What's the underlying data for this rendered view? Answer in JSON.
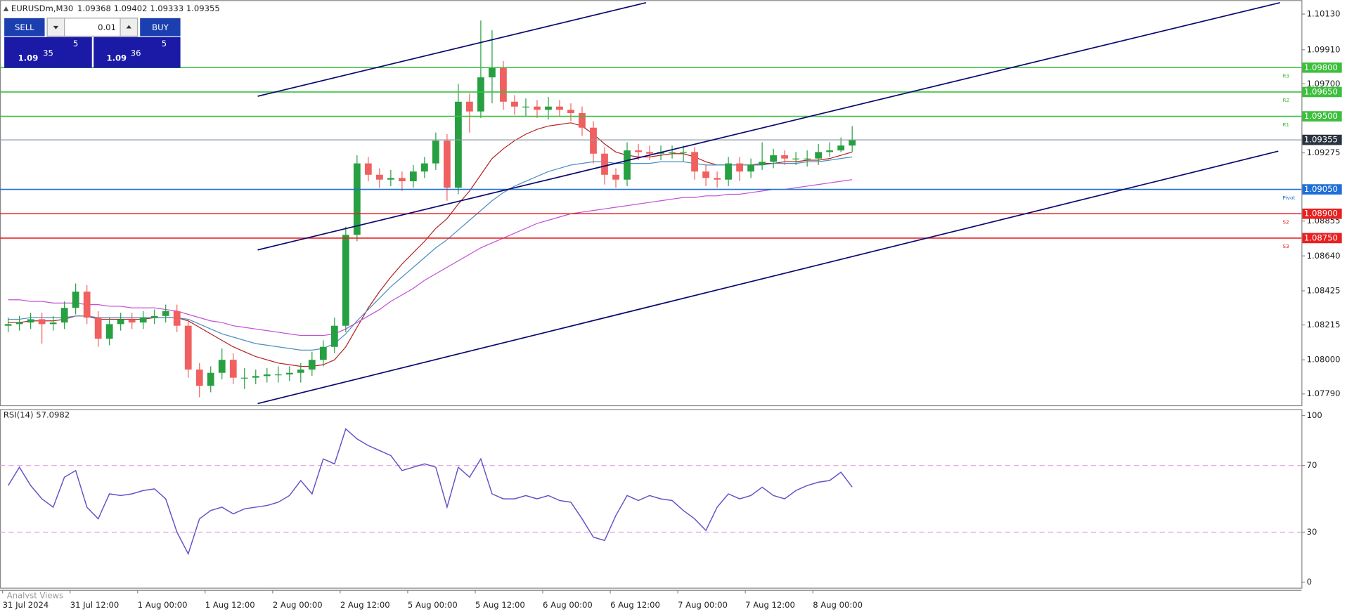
{
  "header": {
    "symbol": "EURUSDm,M30",
    "ohlc": "1.09368 1.09402 1.09333 1.09355"
  },
  "trade_panel": {
    "sell": "SELL",
    "buy": "BUY",
    "lot": "0.01",
    "bid": {
      "big": "1.09",
      "main": "35",
      "small": "5"
    },
    "ask": {
      "big": "1.09",
      "main": "36",
      "small": "5"
    }
  },
  "footer": "Analyst Views",
  "chart_data": [
    {
      "type": "candlestick",
      "up_color": "#26a041",
      "down_color": "#f06060",
      "categories": [
        "31 Jul 2024",
        null,
        null,
        null,
        null,
        null,
        "31 Jul 12:00",
        null,
        null,
        null,
        null,
        null,
        "1 Aug 00:00",
        null,
        null,
        null,
        null,
        null,
        "1 Aug 12:00",
        null,
        null,
        null,
        null,
        null,
        "2 Aug 00:00",
        null,
        null,
        null,
        null,
        null,
        "2 Aug 12:00",
        null,
        null,
        null,
        null,
        null,
        "5 Aug 00:00",
        null,
        null,
        null,
        null,
        null,
        "5 Aug 12:00",
        null,
        null,
        null,
        null,
        null,
        "6 Aug 00:00",
        null,
        null,
        null,
        null,
        null,
        "6 Aug 12:00",
        null,
        null,
        null,
        null,
        null,
        "7 Aug 00:00",
        null,
        null,
        null,
        null,
        null,
        "7 Aug 12:00",
        null,
        null,
        null,
        null,
        null,
        "8 Aug 00:00",
        null,
        null,
        null
      ],
      "open": [
        1.0821,
        1.0822,
        1.0823,
        1.0825,
        1.0822,
        1.0823,
        1.0832,
        1.0842,
        1.0826,
        1.0813,
        1.0822,
        1.0825,
        1.0823,
        1.0826,
        1.0827,
        1.083,
        1.0821,
        1.0794,
        1.0784,
        1.0792,
        1.08,
        1.0789,
        1.0789,
        1.079,
        1.0791,
        1.0791,
        1.0792,
        1.0794,
        1.08,
        1.0808,
        1.0821,
        1.0877,
        1.0921,
        1.0914,
        1.0911,
        1.0912,
        1.091,
        1.0916,
        1.0921,
        1.0935,
        1.0906,
        1.0959,
        1.0953,
        1.0974,
        1.098,
        1.0959,
        1.0956,
        1.0956,
        1.0954,
        1.0956,
        1.0954,
        1.0952,
        1.0943,
        1.0927,
        1.0914,
        1.0911,
        1.0929,
        1.0928,
        1.0927,
        1.0928,
        1.0928,
        1.0928,
        1.0916,
        1.0912,
        1.0911,
        1.0921,
        1.0916,
        1.092,
        1.0922,
        1.0926,
        1.0924,
        1.0924,
        1.0924,
        1.0928,
        1.0929,
        1.0932
      ],
      "high": [
        1.0826,
        1.0827,
        1.0829,
        1.0829,
        1.0827,
        1.0836,
        1.0847,
        1.0846,
        1.083,
        1.0826,
        1.0829,
        1.0829,
        1.083,
        1.0831,
        1.0834,
        1.0834,
        1.0825,
        1.0798,
        1.0796,
        1.0807,
        1.0804,
        1.0795,
        1.0794,
        1.0795,
        1.0796,
        1.0796,
        1.0798,
        1.0805,
        1.0812,
        1.0826,
        1.0882,
        1.0926,
        1.0925,
        1.0918,
        1.0917,
        1.0916,
        1.092,
        1.0925,
        1.094,
        1.0939,
        1.097,
        1.0964,
        1.1009,
        1.1003,
        1.0984,
        1.0963,
        1.0961,
        1.096,
        1.0962,
        1.096,
        1.0958,
        1.0956,
        1.0947,
        1.0931,
        1.0918,
        1.0934,
        1.0933,
        1.0932,
        1.0932,
        1.0932,
        1.0932,
        1.0931,
        1.092,
        1.0916,
        1.0925,
        1.0925,
        1.0924,
        1.0934,
        1.093,
        1.0929,
        1.0928,
        1.0929,
        1.0933,
        1.0934,
        1.0937,
        1.0944
      ],
      "low": [
        1.0817,
        1.0818,
        1.0819,
        1.081,
        1.0818,
        1.0819,
        1.0828,
        1.0822,
        1.0808,
        1.0809,
        1.0818,
        1.0819,
        1.0819,
        1.0822,
        1.0823,
        1.0817,
        1.0789,
        1.0777,
        1.078,
        1.0788,
        1.0785,
        1.0782,
        1.0785,
        1.0786,
        1.0786,
        1.0787,
        1.0786,
        1.079,
        1.0796,
        1.0804,
        1.0817,
        1.0873,
        1.091,
        1.0906,
        1.0907,
        1.0904,
        1.0906,
        1.0912,
        1.0917,
        1.0898,
        1.0902,
        1.094,
        1.0949,
        1.0958,
        1.0954,
        1.0951,
        1.095,
        1.0949,
        1.0948,
        1.095,
        1.0947,
        1.0938,
        1.0921,
        1.0908,
        1.0906,
        1.0907,
        1.0923,
        1.0923,
        1.0923,
        1.0924,
        1.0922,
        1.0911,
        1.0907,
        1.0906,
        1.0907,
        1.091,
        1.0912,
        1.0917,
        1.0918,
        1.092,
        1.092,
        1.0919,
        1.092,
        1.0925,
        1.0928,
        1.0928
      ],
      "close": [
        1.0822,
        1.0823,
        1.0825,
        1.0822,
        1.0823,
        1.0832,
        1.0842,
        1.0826,
        1.0813,
        1.0822,
        1.0825,
        1.0823,
        1.0826,
        1.0827,
        1.083,
        1.0821,
        1.0794,
        1.0784,
        1.0792,
        1.08,
        1.0789,
        1.0789,
        1.079,
        1.0791,
        1.0791,
        1.0792,
        1.0794,
        1.08,
        1.0808,
        1.0821,
        1.0877,
        1.0921,
        1.0914,
        1.0911,
        1.0912,
        1.091,
        1.0916,
        1.0921,
        1.0935,
        1.0906,
        1.0959,
        1.0953,
        1.0974,
        1.098,
        1.0959,
        1.0956,
        1.0956,
        1.0954,
        1.0956,
        1.0954,
        1.0952,
        1.0943,
        1.0927,
        1.0914,
        1.0911,
        1.0929,
        1.0928,
        1.0927,
        1.0928,
        1.0928,
        1.0928,
        1.0916,
        1.0912,
        1.0911,
        1.0921,
        1.0916,
        1.092,
        1.0922,
        1.0926,
        1.0924,
        1.0924,
        1.0924,
        1.0928,
        1.0929,
        1.0932,
        1.09355
      ],
      "lines": [
        {
          "color": "#b22222",
          "values": [
            1.0823,
            1.0823,
            1.0824,
            1.0824,
            1.0824,
            1.0825,
            1.0827,
            1.0827,
            1.0825,
            1.0825,
            1.0825,
            1.0825,
            1.0825,
            1.0826,
            1.0826,
            1.0826,
            1.0824,
            1.082,
            1.0816,
            1.0812,
            1.0808,
            1.0805,
            1.0802,
            1.08,
            1.0798,
            1.0797,
            1.0796,
            1.0796,
            1.0797,
            1.08,
            1.0808,
            1.082,
            1.0832,
            1.0842,
            1.0851,
            1.0859,
            1.0866,
            1.0873,
            1.0881,
            1.0887,
            1.0896,
            1.0904,
            1.0914,
            1.0924,
            1.093,
            1.0935,
            1.0939,
            1.0942,
            1.0944,
            1.0945,
            1.0946,
            1.0944,
            1.0939,
            1.0933,
            1.0928,
            1.0926,
            1.0925,
            1.0925,
            1.0926,
            1.0927,
            1.0927,
            1.0925,
            1.0922,
            1.092,
            1.092,
            1.092,
            1.092,
            1.0921,
            1.0921,
            1.0922,
            1.0922,
            1.0923,
            1.0923,
            1.0924,
            1.0926,
            1.0928
          ]
        },
        {
          "color": "#4a8fc0",
          "values": [
            1.0825,
            1.0825,
            1.0826,
            1.0826,
            1.0826,
            1.0826,
            1.0827,
            1.0827,
            1.0826,
            1.0826,
            1.0826,
            1.0826,
            1.0826,
            1.0826,
            1.0826,
            1.0826,
            1.0825,
            1.0822,
            1.0819,
            1.0816,
            1.0814,
            1.0812,
            1.081,
            1.0809,
            1.0808,
            1.0807,
            1.0806,
            1.0806,
            1.0807,
            1.081,
            1.0816,
            1.0824,
            1.0831,
            1.0838,
            1.0845,
            1.0851,
            1.0857,
            1.0863,
            1.0869,
            1.0874,
            1.088,
            1.0886,
            1.0892,
            1.0898,
            1.0903,
            1.0907,
            1.091,
            1.0913,
            1.0916,
            1.0918,
            1.092,
            1.0921,
            1.0922,
            1.0922,
            1.0921,
            1.0921,
            1.0921,
            1.0921,
            1.0922,
            1.0922,
            1.0922,
            1.0921,
            1.092,
            1.092,
            1.092,
            1.092,
            1.092,
            1.092,
            1.0921,
            1.0921,
            1.0921,
            1.0922,
            1.0922,
            1.0923,
            1.0924,
            1.0925
          ]
        },
        {
          "color": "#c24fd6",
          "values": [
            1.0837,
            1.0837,
            1.0836,
            1.0836,
            1.0835,
            1.0835,
            1.0835,
            1.0834,
            1.0834,
            1.0833,
            1.0833,
            1.0832,
            1.0832,
            1.0832,
            1.0831,
            1.083,
            1.0828,
            1.0826,
            1.0824,
            1.0823,
            1.0821,
            1.082,
            1.0819,
            1.0818,
            1.0817,
            1.0816,
            1.0815,
            1.0815,
            1.0815,
            1.0816,
            1.0819,
            1.0823,
            1.0827,
            1.0831,
            1.0836,
            1.084,
            1.0844,
            1.0849,
            1.0853,
            1.0857,
            1.0861,
            1.0865,
            1.0869,
            1.0872,
            1.0875,
            1.0878,
            1.0881,
            1.0884,
            1.0886,
            1.0888,
            1.089,
            1.0891,
            1.0892,
            1.0893,
            1.0894,
            1.0895,
            1.0896,
            1.0897,
            1.0898,
            1.0899,
            1.09,
            1.09,
            1.0901,
            1.0901,
            1.0902,
            1.0902,
            1.0903,
            1.0904,
            1.0905,
            1.0905,
            1.0906,
            1.0907,
            1.0908,
            1.0909,
            1.091,
            1.0911
          ]
        }
      ],
      "levels": [
        {
          "name": "R3",
          "value": 1.098,
          "label": "1.09800",
          "color": "#3cbf3c"
        },
        {
          "name": "R2",
          "value": 1.0965,
          "label": "1.09650",
          "color": "#3cbf3c"
        },
        {
          "name": "R1",
          "value": 1.095,
          "label": "1.09500",
          "color": "#3cbf3c"
        },
        {
          "name": "Pivot",
          "value": 1.0905,
          "label": "1.09050",
          "color": "#1e6fd9"
        },
        {
          "name": "S2",
          "value": 1.089,
          "label": "1.08900",
          "color": "#e82020"
        },
        {
          "name": "S3",
          "value": 1.0875,
          "label": "1.08750",
          "color": "#e82020"
        }
      ],
      "last_price": {
        "value": 1.09355,
        "label": "1.09355",
        "color": "#8c9aa6",
        "box_color": "#2a3440"
      },
      "ylim": [
        1.0772,
        1.102
      ],
      "yticks": [
        {
          "value": 1.1013,
          "label": "1.10130"
        },
        {
          "value": 1.0991,
          "label": "1.09910"
        },
        {
          "value": 1.097,
          "label": "1.09700"
        },
        {
          "value": 1.09275,
          "label": "1.09275"
        },
        {
          "value": 1.08855,
          "label": "1.08855"
        },
        {
          "value": 1.0864,
          "label": "1.08640"
        },
        {
          "value": 1.08425,
          "label": "1.08425"
        },
        {
          "value": 1.08215,
          "label": "1.08215"
        },
        {
          "value": 1.08,
          "label": "1.08000"
        },
        {
          "value": 1.0779,
          "label": "1.07790"
        }
      ]
    },
    {
      "type": "line",
      "title": "RSI(14) 57.0982",
      "color": "#6650c8",
      "values": [
        58,
        69,
        58,
        50,
        45,
        63,
        67,
        45,
        38,
        53,
        52,
        53,
        55,
        56,
        50,
        30,
        17,
        38,
        43,
        45,
        41,
        44,
        45,
        46,
        48,
        52,
        61,
        53,
        74,
        71,
        92,
        86,
        82,
        79,
        76,
        67,
        69,
        71,
        69,
        45,
        69,
        63,
        74,
        53,
        50,
        50,
        52,
        50,
        52,
        49,
        48,
        38,
        27,
        25,
        40,
        52,
        49,
        52,
        50,
        49,
        43,
        38,
        31,
        45,
        53,
        50,
        52,
        57,
        52,
        50,
        55,
        58,
        60,
        61,
        66,
        57.0982
      ],
      "ylim": [
        -3.6,
        103.6
      ],
      "yticks": [
        0,
        30,
        70,
        100
      ],
      "levels": [
        30,
        70
      ],
      "level_color": "#e0a0e0"
    }
  ]
}
